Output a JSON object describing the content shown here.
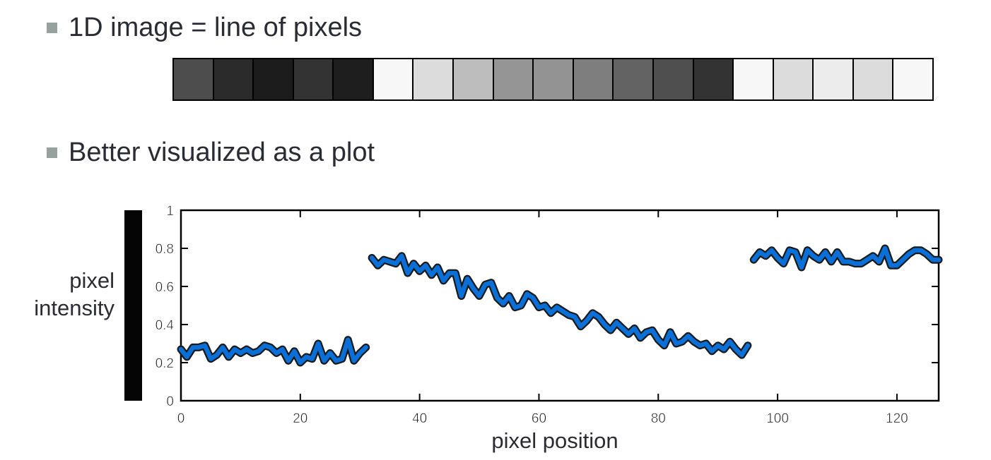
{
  "bullets": {
    "first": "1D image = line of pixels",
    "second": "Better visualized as a plot"
  },
  "pixel_strip": {
    "cells": [
      "#4d4d4d",
      "#2b2b2b",
      "#1c1c1c",
      "#333333",
      "#1e1e1e",
      "#f7f7f7",
      "#dcdcdc",
      "#bdbdbd",
      "#959595",
      "#939393",
      "#7e7e7e",
      "#636363",
      "#4f4f4f",
      "#333333",
      "#f7f7f7",
      "#dcdcdc",
      "#ececec",
      "#dcdcdc",
      "#f7f7f7"
    ]
  },
  "chart_data": {
    "type": "line",
    "xlabel": "pixel position",
    "ylabel": "pixel intensity",
    "xlim": [
      0,
      127
    ],
    "ylim": [
      0,
      1
    ],
    "xticks": [
      "0",
      "20",
      "40",
      "60",
      "80",
      "100",
      "120"
    ],
    "xtick_values": [
      0,
      20,
      40,
      60,
      80,
      100,
      120
    ],
    "yticks": [
      "0",
      "0.2",
      "0.4",
      "0.6",
      "0.8",
      "1"
    ],
    "ytick_values": [
      0,
      0.2,
      0.4,
      0.6,
      0.8,
      1
    ],
    "grid": false,
    "line_color": "#0a6fd6",
    "series": [
      {
        "segments": [
          {
            "x": [
              0,
              1,
              2,
              3,
              4,
              5,
              6,
              7,
              8,
              9,
              10,
              11,
              12,
              13,
              14,
              15,
              16,
              17,
              18,
              19,
              20,
              21,
              22,
              23,
              24,
              25,
              26,
              27,
              28,
              29,
              30,
              31
            ],
            "y": [
              0.27,
              0.23,
              0.28,
              0.28,
              0.29,
              0.22,
              0.24,
              0.28,
              0.23,
              0.27,
              0.25,
              0.27,
              0.25,
              0.26,
              0.29,
              0.28,
              0.25,
              0.27,
              0.21,
              0.26,
              0.2,
              0.23,
              0.22,
              0.3,
              0.21,
              0.25,
              0.21,
              0.22,
              0.32,
              0.21,
              0.25,
              0.28
            ]
          },
          {
            "x": [
              32,
              33,
              34,
              35,
              36,
              37,
              38,
              39,
              40,
              41,
              42,
              43,
              44,
              45,
              46,
              47,
              48,
              49,
              50,
              51,
              52,
              53,
              54,
              55,
              56,
              57,
              58,
              59,
              60,
              61,
              62,
              63,
              64,
              65,
              66,
              67,
              68,
              69,
              70,
              71,
              72,
              73,
              74,
              75,
              76,
              77,
              78,
              79,
              80,
              81,
              82,
              83,
              84,
              85,
              86,
              87,
              88,
              89,
              90,
              91,
              92,
              93,
              94,
              95
            ],
            "y": [
              0.75,
              0.71,
              0.74,
              0.73,
              0.72,
              0.76,
              0.67,
              0.72,
              0.68,
              0.71,
              0.66,
              0.7,
              0.63,
              0.67,
              0.67,
              0.55,
              0.64,
              0.59,
              0.55,
              0.61,
              0.62,
              0.54,
              0.51,
              0.55,
              0.49,
              0.5,
              0.56,
              0.54,
              0.49,
              0.5,
              0.46,
              0.49,
              0.47,
              0.45,
              0.44,
              0.39,
              0.42,
              0.46,
              0.44,
              0.4,
              0.37,
              0.41,
              0.38,
              0.35,
              0.38,
              0.33,
              0.36,
              0.37,
              0.32,
              0.29,
              0.36,
              0.3,
              0.31,
              0.34,
              0.31,
              0.29,
              0.3,
              0.26,
              0.29,
              0.27,
              0.31,
              0.27,
              0.24,
              0.29
            ]
          },
          {
            "x": [
              96,
              97,
              98,
              99,
              100,
              101,
              102,
              103,
              104,
              105,
              106,
              107,
              108,
              109,
              110,
              111,
              112,
              113,
              114,
              115,
              116,
              117,
              118,
              119,
              120,
              121,
              122,
              123,
              124,
              125,
              126,
              127
            ],
            "y": [
              0.74,
              0.78,
              0.76,
              0.79,
              0.75,
              0.72,
              0.79,
              0.78,
              0.7,
              0.79,
              0.76,
              0.74,
              0.78,
              0.73,
              0.78,
              0.73,
              0.73,
              0.72,
              0.72,
              0.74,
              0.76,
              0.73,
              0.8,
              0.71,
              0.71,
              0.74,
              0.77,
              0.79,
              0.79,
              0.77,
              0.74,
              0.74
            ]
          }
        ]
      }
    ]
  }
}
